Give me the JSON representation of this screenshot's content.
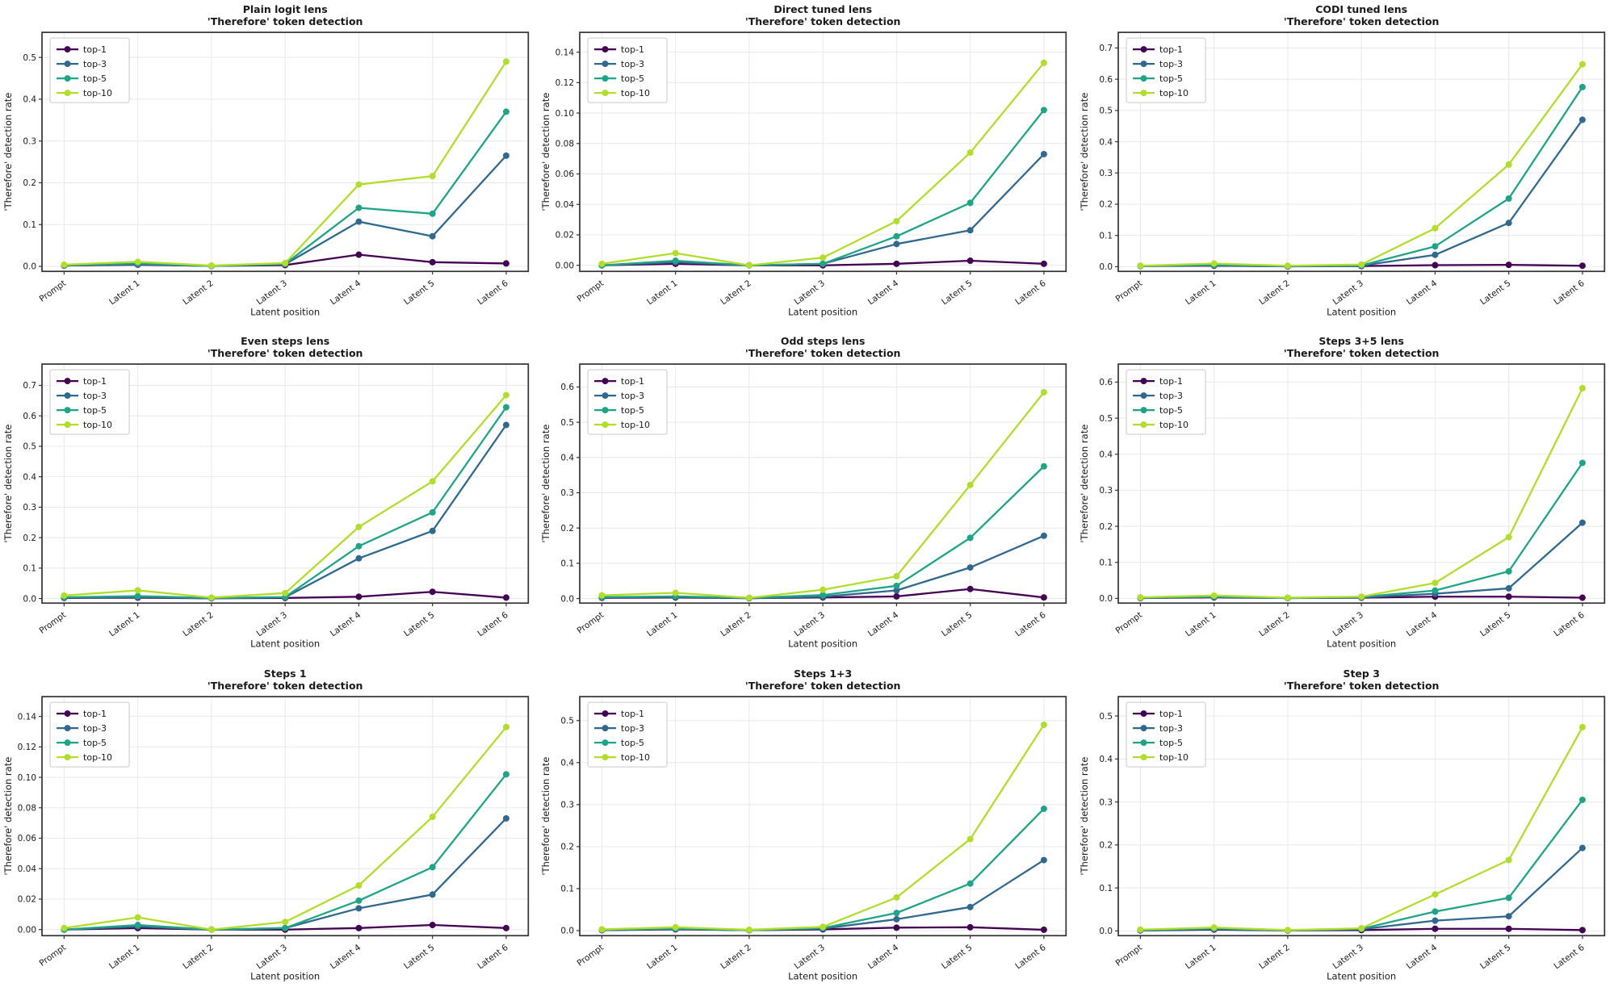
{
  "figure": {
    "shared": {
      "subtitle": "'Therefore' token detection",
      "xlabel": "Latent position",
      "ylabel": "'Therefore' detection rate",
      "categories": [
        "Prompt",
        "Latent 1",
        "Latent 2",
        "Latent 3",
        "Latent 4",
        "Latent 5",
        "Latent 6"
      ],
      "legend_entries": [
        "top-1",
        "top-3",
        "top-5",
        "top-10"
      ],
      "colors": {
        "top-1": "#440154",
        "top-3": "#31688e",
        "top-5": "#20a486",
        "top-10": "#b2dd2c"
      },
      "grid_color": "#e8e8e8",
      "spine_color": "#333333",
      "legend_position": "upper left"
    }
  },
  "chart_data": [
    {
      "type": "line",
      "title": "Plain logit lens",
      "subtitle": "'Therefore' token detection",
      "xlabel": "Latent position",
      "ylabel": "'Therefore' detection rate",
      "categories": [
        "Prompt",
        "Latent 1",
        "Latent 2",
        "Latent 3",
        "Latent 4",
        "Latent 5",
        "Latent 6"
      ],
      "ylim": [
        -0.012,
        0.56
      ],
      "yticks": [
        0.0,
        0.1,
        0.2,
        0.3,
        0.4,
        0.5
      ],
      "ytick_decimals": 1,
      "grid": true,
      "legend_position": "upper left",
      "series": [
        {
          "name": "top-1",
          "color": "#440154",
          "values": [
            0.002,
            0.004,
            0.001,
            0.003,
            0.028,
            0.01,
            0.007
          ]
        },
        {
          "name": "top-3",
          "color": "#31688e",
          "values": [
            0.002,
            0.005,
            0.001,
            0.005,
            0.107,
            0.072,
            0.265
          ]
        },
        {
          "name": "top-5",
          "color": "#20a486",
          "values": [
            0.003,
            0.007,
            0.001,
            0.006,
            0.14,
            0.126,
            0.37
          ]
        },
        {
          "name": "top-10",
          "color": "#b2dd2c",
          "values": [
            0.004,
            0.011,
            0.002,
            0.008,
            0.196,
            0.216,
            0.49
          ]
        }
      ]
    },
    {
      "type": "line",
      "title": "Direct tuned lens",
      "subtitle": "'Therefore' token detection",
      "xlabel": "Latent position",
      "ylabel": "'Therefore' detection rate",
      "categories": [
        "Prompt",
        "Latent 1",
        "Latent 2",
        "Latent 3",
        "Latent 4",
        "Latent 5",
        "Latent 6"
      ],
      "ylim": [
        -0.004,
        0.153
      ],
      "yticks": [
        0.0,
        0.02,
        0.04,
        0.06,
        0.08,
        0.1,
        0.12,
        0.14
      ],
      "ytick_decimals": 2,
      "grid": true,
      "legend_position": "upper left",
      "series": [
        {
          "name": "top-1",
          "color": "#440154",
          "values": [
            0.0,
            0.001,
            0.0,
            0.0,
            0.001,
            0.003,
            0.001
          ]
        },
        {
          "name": "top-3",
          "color": "#31688e",
          "values": [
            0.0,
            0.002,
            0.0,
            0.001,
            0.014,
            0.023,
            0.073
          ]
        },
        {
          "name": "top-5",
          "color": "#20a486",
          "values": [
            0.0,
            0.003,
            0.0,
            0.001,
            0.019,
            0.041,
            0.102
          ]
        },
        {
          "name": "top-10",
          "color": "#b2dd2c",
          "values": [
            0.001,
            0.008,
            0.0,
            0.005,
            0.029,
            0.074,
            0.133
          ]
        }
      ]
    },
    {
      "type": "line",
      "title": "CODI tuned lens",
      "subtitle": "'Therefore' token detection",
      "xlabel": "Latent position",
      "ylabel": "'Therefore' detection rate",
      "categories": [
        "Prompt",
        "Latent 1",
        "Latent 2",
        "Latent 3",
        "Latent 4",
        "Latent 5",
        "Latent 6"
      ],
      "ylim": [
        -0.015,
        0.75
      ],
      "yticks": [
        0.0,
        0.1,
        0.2,
        0.3,
        0.4,
        0.5,
        0.6,
        0.7
      ],
      "ytick_decimals": 1,
      "grid": true,
      "legend_position": "upper left",
      "series": [
        {
          "name": "top-1",
          "color": "#440154",
          "values": [
            0.002,
            0.003,
            0.001,
            0.002,
            0.005,
            0.006,
            0.003
          ]
        },
        {
          "name": "top-3",
          "color": "#31688e",
          "values": [
            0.002,
            0.004,
            0.001,
            0.003,
            0.038,
            0.14,
            0.47
          ]
        },
        {
          "name": "top-5",
          "color": "#20a486",
          "values": [
            0.002,
            0.006,
            0.002,
            0.004,
            0.065,
            0.218,
            0.575
          ]
        },
        {
          "name": "top-10",
          "color": "#b2dd2c",
          "values": [
            0.003,
            0.01,
            0.003,
            0.007,
            0.123,
            0.327,
            0.648
          ]
        }
      ]
    },
    {
      "type": "line",
      "title": "Even steps lens",
      "subtitle": "'Therefore' token detection",
      "xlabel": "Latent position",
      "ylabel": "'Therefore' detection rate",
      "categories": [
        "Prompt",
        "Latent 1",
        "Latent 2",
        "Latent 3",
        "Latent 4",
        "Latent 5",
        "Latent 6"
      ],
      "ylim": [
        -0.015,
        0.77
      ],
      "yticks": [
        0.0,
        0.1,
        0.2,
        0.3,
        0.4,
        0.5,
        0.6,
        0.7
      ],
      "ytick_decimals": 1,
      "grid": true,
      "legend_position": "upper left",
      "series": [
        {
          "name": "top-1",
          "color": "#440154",
          "values": [
            0.002,
            0.003,
            0.001,
            0.002,
            0.006,
            0.022,
            0.003
          ]
        },
        {
          "name": "top-3",
          "color": "#31688e",
          "values": [
            0.003,
            0.005,
            0.001,
            0.004,
            0.132,
            0.222,
            0.57
          ]
        },
        {
          "name": "top-5",
          "color": "#20a486",
          "values": [
            0.004,
            0.008,
            0.002,
            0.005,
            0.172,
            0.283,
            0.628
          ]
        },
        {
          "name": "top-10",
          "color": "#b2dd2c",
          "values": [
            0.01,
            0.027,
            0.003,
            0.018,
            0.235,
            0.385,
            0.668
          ]
        }
      ]
    },
    {
      "type": "line",
      "title": "Odd steps lens",
      "subtitle": "'Therefore' token detection",
      "xlabel": "Latent position",
      "ylabel": "'Therefore' detection rate",
      "categories": [
        "Prompt",
        "Latent 1",
        "Latent 2",
        "Latent 3",
        "Latent 4",
        "Latent 5",
        "Latent 6"
      ],
      "ylim": [
        -0.013,
        0.665
      ],
      "yticks": [
        0.0,
        0.1,
        0.2,
        0.3,
        0.4,
        0.5,
        0.6
      ],
      "ytick_decimals": 1,
      "grid": true,
      "legend_position": "upper left",
      "series": [
        {
          "name": "top-1",
          "color": "#440154",
          "values": [
            0.002,
            0.003,
            0.001,
            0.003,
            0.006,
            0.027,
            0.003
          ]
        },
        {
          "name": "top-3",
          "color": "#31688e",
          "values": [
            0.003,
            0.005,
            0.001,
            0.005,
            0.023,
            0.088,
            0.178
          ]
        },
        {
          "name": "top-5",
          "color": "#20a486",
          "values": [
            0.004,
            0.006,
            0.002,
            0.01,
            0.036,
            0.172,
            0.375
          ]
        },
        {
          "name": "top-10",
          "color": "#b2dd2c",
          "values": [
            0.009,
            0.016,
            0.002,
            0.025,
            0.063,
            0.322,
            0.585
          ]
        }
      ]
    },
    {
      "type": "line",
      "title": "Steps 3+5 lens",
      "subtitle": "'Therefore' token detection",
      "xlabel": "Latent position",
      "ylabel": "'Therefore' detection rate",
      "categories": [
        "Prompt",
        "Latent 1",
        "Latent 2",
        "Latent 3",
        "Latent 4",
        "Latent 5",
        "Latent 6"
      ],
      "ylim": [
        -0.013,
        0.65
      ],
      "yticks": [
        0.0,
        0.1,
        0.2,
        0.3,
        0.4,
        0.5,
        0.6
      ],
      "ytick_decimals": 1,
      "grid": true,
      "legend_position": "upper left",
      "series": [
        {
          "name": "top-1",
          "color": "#440154",
          "values": [
            0.001,
            0.003,
            0.001,
            0.002,
            0.005,
            0.005,
            0.002
          ]
        },
        {
          "name": "top-3",
          "color": "#31688e",
          "values": [
            0.001,
            0.004,
            0.001,
            0.003,
            0.013,
            0.028,
            0.21
          ]
        },
        {
          "name": "top-5",
          "color": "#20a486",
          "values": [
            0.002,
            0.005,
            0.001,
            0.004,
            0.022,
            0.075,
            0.376
          ]
        },
        {
          "name": "top-10",
          "color": "#b2dd2c",
          "values": [
            0.003,
            0.008,
            0.002,
            0.005,
            0.043,
            0.17,
            0.583
          ]
        }
      ]
    },
    {
      "type": "line",
      "title": "Steps 1",
      "subtitle": "'Therefore' token detection",
      "xlabel": "Latent position",
      "ylabel": "'Therefore' detection rate",
      "categories": [
        "Prompt",
        "Latent 1",
        "Latent 2",
        "Latent 3",
        "Latent 4",
        "Latent 5",
        "Latent 6"
      ],
      "ylim": [
        -0.004,
        0.153
      ],
      "yticks": [
        0.0,
        0.02,
        0.04,
        0.06,
        0.08,
        0.1,
        0.12,
        0.14
      ],
      "ytick_decimals": 2,
      "grid": true,
      "legend_position": "upper left",
      "series": [
        {
          "name": "top-1",
          "color": "#440154",
          "values": [
            0.0,
            0.001,
            0.0,
            0.0,
            0.001,
            0.003,
            0.001
          ]
        },
        {
          "name": "top-3",
          "color": "#31688e",
          "values": [
            0.0,
            0.002,
            0.0,
            0.001,
            0.014,
            0.023,
            0.073
          ]
        },
        {
          "name": "top-5",
          "color": "#20a486",
          "values": [
            0.0,
            0.003,
            0.0,
            0.001,
            0.019,
            0.041,
            0.102
          ]
        },
        {
          "name": "top-10",
          "color": "#b2dd2c",
          "values": [
            0.001,
            0.008,
            0.0,
            0.005,
            0.029,
            0.074,
            0.133
          ]
        }
      ]
    },
    {
      "type": "line",
      "title": "Steps 1+3",
      "subtitle": "'Therefore' token detection",
      "xlabel": "Latent position",
      "ylabel": "'Therefore' detection rate",
      "categories": [
        "Prompt",
        "Latent 1",
        "Latent 2",
        "Latent 3",
        "Latent 4",
        "Latent 5",
        "Latent 6"
      ],
      "ylim": [
        -0.012,
        0.557
      ],
      "yticks": [
        0.0,
        0.1,
        0.2,
        0.3,
        0.4,
        0.5
      ],
      "ytick_decimals": 1,
      "grid": true,
      "legend_position": "upper left",
      "series": [
        {
          "name": "top-1",
          "color": "#440154",
          "values": [
            0.001,
            0.003,
            0.001,
            0.003,
            0.007,
            0.008,
            0.002
          ]
        },
        {
          "name": "top-3",
          "color": "#31688e",
          "values": [
            0.001,
            0.004,
            0.001,
            0.005,
            0.027,
            0.056,
            0.168
          ]
        },
        {
          "name": "top-5",
          "color": "#20a486",
          "values": [
            0.002,
            0.005,
            0.001,
            0.006,
            0.042,
            0.112,
            0.29
          ]
        },
        {
          "name": "top-10",
          "color": "#b2dd2c",
          "values": [
            0.003,
            0.008,
            0.002,
            0.009,
            0.079,
            0.218,
            0.49
          ]
        }
      ]
    },
    {
      "type": "line",
      "title": "Step 3",
      "subtitle": "'Therefore' token detection",
      "xlabel": "Latent position",
      "ylabel": "'Therefore' detection rate",
      "categories": [
        "Prompt",
        "Latent 1",
        "Latent 2",
        "Latent 3",
        "Latent 4",
        "Latent 5",
        "Latent 6"
      ],
      "ylim": [
        -0.011,
        0.545
      ],
      "yticks": [
        0.0,
        0.1,
        0.2,
        0.3,
        0.4,
        0.5
      ],
      "ytick_decimals": 1,
      "grid": true,
      "legend_position": "upper left",
      "series": [
        {
          "name": "top-1",
          "color": "#440154",
          "values": [
            0.001,
            0.003,
            0.001,
            0.002,
            0.005,
            0.005,
            0.002
          ]
        },
        {
          "name": "top-3",
          "color": "#31688e",
          "values": [
            0.001,
            0.004,
            0.001,
            0.004,
            0.024,
            0.034,
            0.193
          ]
        },
        {
          "name": "top-5",
          "color": "#20a486",
          "values": [
            0.002,
            0.006,
            0.001,
            0.005,
            0.045,
            0.077,
            0.305
          ]
        },
        {
          "name": "top-10",
          "color": "#b2dd2c",
          "values": [
            0.003,
            0.008,
            0.002,
            0.006,
            0.085,
            0.165,
            0.474
          ]
        }
      ]
    }
  ]
}
